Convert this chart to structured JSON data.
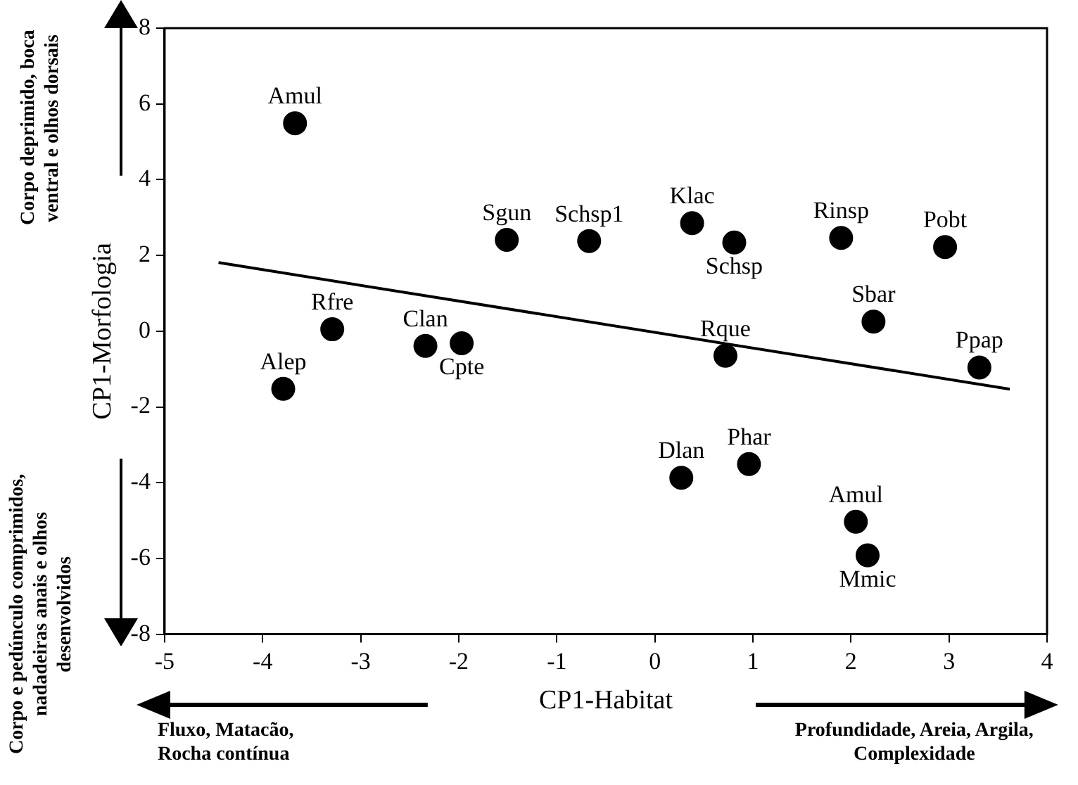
{
  "chart_data": {
    "type": "scatter",
    "xlabel": "CP1-Habitat",
    "ylabel": "CP1-Morfologia",
    "xlim": [
      -5,
      4
    ],
    "xticks": [
      -5,
      -4,
      -3,
      -2,
      -1,
      0,
      1,
      2,
      3,
      4
    ],
    "ylim": [
      -8,
      8
    ],
    "yticks": [
      -8,
      -6,
      -4,
      -2,
      0,
      2,
      4,
      6,
      8
    ],
    "grid": false,
    "legend": false,
    "marker": "circle",
    "series": [
      {
        "type": "scatter",
        "color": "#000000",
        "x": [
          -3.67,
          -3.29,
          -3.79,
          -2.34,
          -1.97,
          -1.51,
          -0.67,
          0.38,
          0.81,
          1.9,
          2.96,
          2.23,
          0.72,
          3.31,
          0.27,
          0.96,
          2.05,
          2.17
        ],
        "values": [
          5.49,
          0.05,
          -1.52,
          -0.39,
          -0.32,
          2.41,
          2.38,
          2.85,
          2.34,
          2.46,
          2.22,
          0.25,
          -0.65,
          -0.96,
          -3.87,
          -3.51,
          -5.03,
          -5.92
        ]
      },
      {
        "type": "line",
        "color": "#000000",
        "marker": "none",
        "x": [
          -4.45,
          3.62
        ],
        "values": [
          1.81,
          -1.53
        ]
      }
    ],
    "annotations": [
      {
        "text": "Amul",
        "x": -3.67,
        "y": 5.49
      },
      {
        "text": "Rfre",
        "x": -3.29,
        "y": 0.05
      },
      {
        "text": "Alep",
        "x": -3.79,
        "y": -1.52
      },
      {
        "text": "Clan",
        "x": -2.34,
        "y": -0.39
      },
      {
        "text": "Cpte",
        "x": -1.97,
        "y": -0.32
      },
      {
        "text": "Sgun",
        "x": -1.51,
        "y": 2.41
      },
      {
        "text": "Schsp1",
        "x": -0.67,
        "y": 2.38
      },
      {
        "text": "Klac",
        "x": 0.38,
        "y": 2.85
      },
      {
        "text": "Schsp",
        "x": 0.81,
        "y": 2.34
      },
      {
        "text": "Rinsp",
        "x": 1.9,
        "y": 2.46
      },
      {
        "text": "Pobt",
        "x": 2.96,
        "y": 2.22
      },
      {
        "text": "Sbar",
        "x": 2.23,
        "y": 0.25
      },
      {
        "text": "Rque",
        "x": 0.72,
        "y": -0.65
      },
      {
        "text": "Ppap",
        "x": 3.31,
        "y": -0.96
      },
      {
        "text": "Dlan",
        "x": 0.27,
        "y": -3.87
      },
      {
        "text": "Phar",
        "x": 0.96,
        "y": -3.51
      },
      {
        "text": "Amul",
        "x": 2.05,
        "y": -5.03
      },
      {
        "text": "Mmic",
        "x": 2.17,
        "y": -5.92
      },
      "Corpo deprimido, boca ventral e olhos dorsais",
      "Corpo e pedúnculo comprimidos, nadadeiras anais e olhos desenvolvidos",
      "Fluxo, Matacão, Rocha contínua",
      "Profundidade, Areia, Argila, Complexidade"
    ]
  }
}
